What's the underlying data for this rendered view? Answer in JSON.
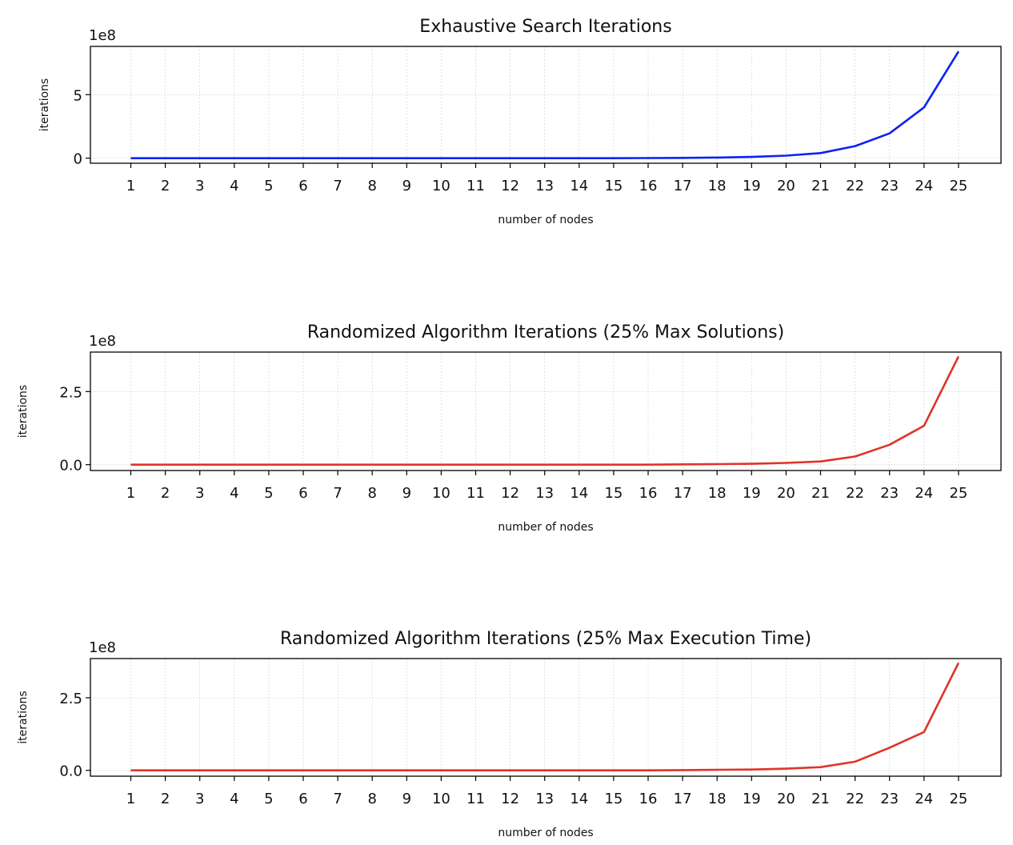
{
  "chart_data": [
    {
      "type": "line",
      "title": "Exhaustive Search Iterations",
      "xlabel": "number of nodes",
      "ylabel": "iterations",
      "offset_label": "1e8",
      "x": [
        1,
        2,
        3,
        4,
        5,
        6,
        7,
        8,
        9,
        10,
        11,
        12,
        13,
        14,
        15,
        16,
        17,
        18,
        19,
        20,
        21,
        22,
        23,
        24,
        25
      ],
      "ylim": [
        -0.4,
        8.8
      ],
      "yticks": [
        0,
        5
      ],
      "ytick_labels": [
        "0",
        "5"
      ],
      "grid": true,
      "series": [
        {
          "color": "#0a22f5",
          "values": [
            0,
            0,
            0,
            0,
            0,
            0,
            0,
            0,
            0,
            0,
            0,
            0,
            0,
            0,
            0,
            0.01,
            0.02,
            0.05,
            0.1,
            0.2,
            0.4,
            0.95,
            1.95,
            4.0,
            8.4
          ]
        }
      ]
    },
    {
      "type": "line",
      "title": "Randomized Algorithm Iterations (25% Max Solutions)",
      "xlabel": "number of nodes",
      "ylabel": "iterations",
      "offset_label": "1e8",
      "x": [
        1,
        2,
        3,
        4,
        5,
        6,
        7,
        8,
        9,
        10,
        11,
        12,
        13,
        14,
        15,
        16,
        17,
        18,
        19,
        20,
        21,
        22,
        23,
        24,
        25
      ],
      "ylim": [
        -0.2,
        3.85
      ],
      "yticks": [
        0,
        2.5
      ],
      "ytick_labels": [
        "0.0",
        "2.5"
      ],
      "grid": true,
      "series": [
        {
          "color": "#e03328",
          "values": [
            0,
            0,
            0,
            0,
            0,
            0,
            0,
            0,
            0,
            0,
            0,
            0,
            0,
            0,
            0,
            0,
            0.01,
            0.02,
            0.03,
            0.06,
            0.11,
            0.28,
            0.68,
            1.33,
            3.7
          ]
        }
      ]
    },
    {
      "type": "line",
      "title": "Randomized Algorithm Iterations (25% Max Execution Time)",
      "xlabel": "number of nodes",
      "ylabel": "iterations",
      "offset_label": "1e8",
      "x": [
        1,
        2,
        3,
        4,
        5,
        6,
        7,
        8,
        9,
        10,
        11,
        12,
        13,
        14,
        15,
        16,
        17,
        18,
        19,
        20,
        21,
        22,
        23,
        24,
        25
      ],
      "ylim": [
        -0.2,
        3.85
      ],
      "yticks": [
        0,
        2.5
      ],
      "ytick_labels": [
        "0.0",
        "2.5"
      ],
      "grid": true,
      "series": [
        {
          "color": "#e03328",
          "values": [
            0,
            0,
            0,
            0,
            0,
            0,
            0,
            0,
            0,
            0,
            0,
            0,
            0,
            0,
            0,
            0,
            0.01,
            0.02,
            0.03,
            0.06,
            0.11,
            0.3,
            0.78,
            1.32,
            3.7
          ]
        }
      ]
    }
  ]
}
